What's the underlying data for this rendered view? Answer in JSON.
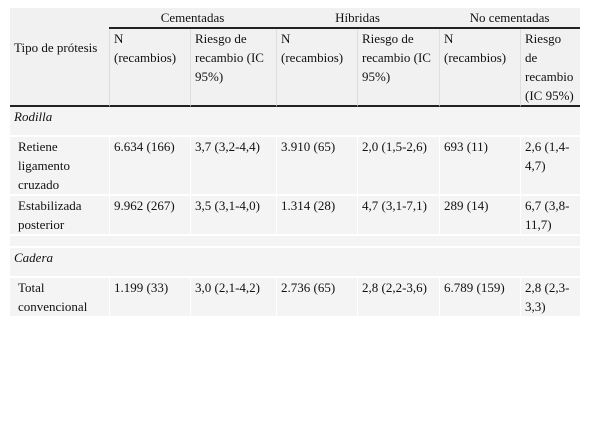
{
  "table": {
    "groups": [
      "Cementadas",
      "Híbridas",
      "No cementadas"
    ],
    "header": {
      "tipo": "Tipo de prótesis",
      "n": "N (recambios)",
      "riesgo_a": "Riesgo de recambio (IC 95%)",
      "riesgo_b": "Riesgo de recambio (IC 95%)",
      "riesgo_c": "Riesgo de recambio (IC 95%)"
    },
    "sections": [
      {
        "title": "Rodilla",
        "rows": [
          {
            "label": "Retiene ligamento cruzado",
            "cem_n": "6.634 (166)",
            "cem_r": "3,7 (3,2-4,4)",
            "hib_n": "3.910 (65)",
            "hib_r": "2,0 (1,5-2,6)",
            "nc_n": "693 (11)",
            "nc_r": "2,6 (1,4-4,7)"
          },
          {
            "label": "Estabilizada posterior",
            "cem_n": "9.962 (267)",
            "cem_r": "3,5 (3,1-4,0)",
            "hib_n": "1.314 (28)",
            "hib_r": "4,7 (3,1-7,1)",
            "nc_n": "289 (14)",
            "nc_r": "6,7 (3,8-11,7)"
          }
        ]
      },
      {
        "title": "Cadera",
        "rows": [
          {
            "label": "Total convencional",
            "cem_n": "1.199 (33)",
            "cem_r": "3,0 (2,1-4,2)",
            "hib_n": "2.736 (65)",
            "hib_r": "2,8 (2,2-3,6)",
            "nc_n": "6.789 (159)",
            "nc_r": "2,8 (2,3-3,3)"
          }
        ]
      }
    ]
  }
}
